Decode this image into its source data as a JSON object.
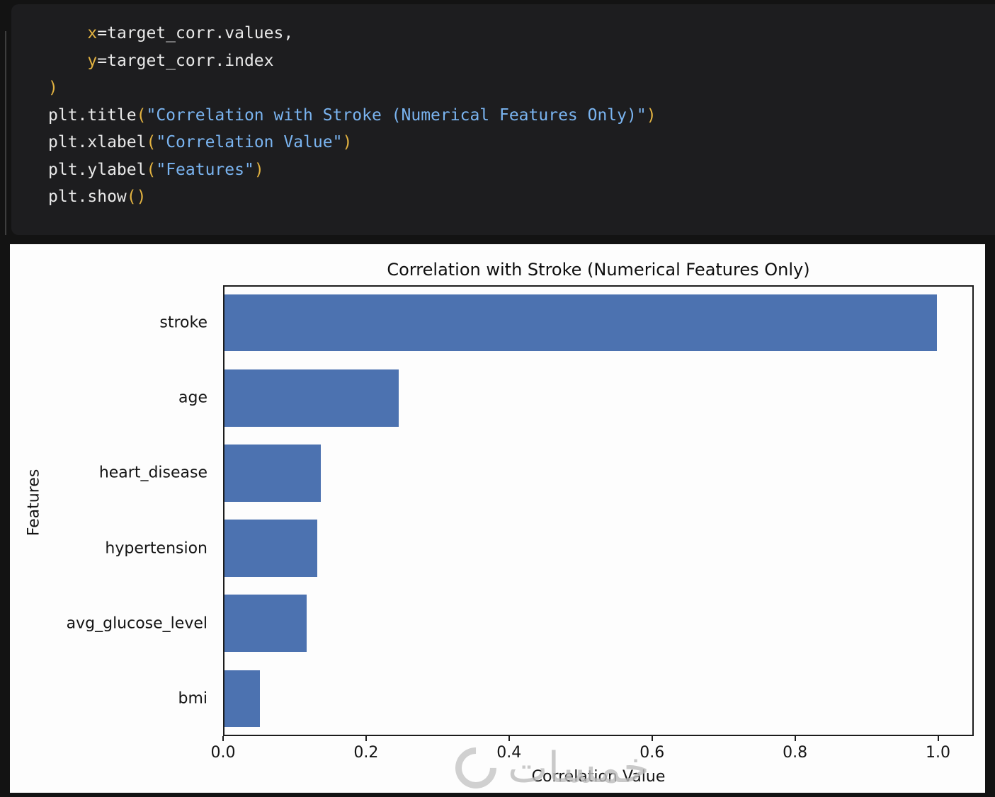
{
  "code_cell": {
    "colors": {
      "plain": "#e9e9e9",
      "accent": "#e3b341",
      "string": "#7ab4f0"
    },
    "lines": [
      {
        "tokens": [
          {
            "text": "    ",
            "type": "plain"
          },
          {
            "text": "x",
            "type": "accent"
          },
          {
            "text": "=target_corr.values,",
            "type": "plain"
          }
        ]
      },
      {
        "tokens": [
          {
            "text": "    ",
            "type": "plain"
          },
          {
            "text": "y",
            "type": "accent"
          },
          {
            "text": "=target_corr.index",
            "type": "plain"
          }
        ]
      },
      {
        "tokens": [
          {
            "text": ")",
            "type": "accent"
          }
        ]
      },
      {
        "tokens": [
          {
            "text": "plt.title",
            "type": "plain"
          },
          {
            "text": "(",
            "type": "accent"
          },
          {
            "text": "\"Correlation with Stroke (Numerical Features Only)\"",
            "type": "string"
          },
          {
            "text": ")",
            "type": "accent"
          }
        ]
      },
      {
        "tokens": [
          {
            "text": "plt.xlabel",
            "type": "plain"
          },
          {
            "text": "(",
            "type": "accent"
          },
          {
            "text": "\"Correlation Value\"",
            "type": "string"
          },
          {
            "text": ")",
            "type": "accent"
          }
        ]
      },
      {
        "tokens": [
          {
            "text": "plt.ylabel",
            "type": "plain"
          },
          {
            "text": "(",
            "type": "accent"
          },
          {
            "text": "\"Features\"",
            "type": "string"
          },
          {
            "text": ")",
            "type": "accent"
          }
        ]
      },
      {
        "tokens": [
          {
            "text": "plt.show",
            "type": "plain"
          },
          {
            "text": "()",
            "type": "accent"
          }
        ]
      }
    ]
  },
  "chart_data": {
    "type": "bar",
    "orientation": "horizontal",
    "title": "Correlation with Stroke (Numerical Features Only)",
    "xlabel": "Correlation Value",
    "ylabel": "Features",
    "categories": [
      "stroke",
      "age",
      "heart_disease",
      "hypertension",
      "avg_glucose_level",
      "bmi"
    ],
    "values": [
      1.0,
      0.245,
      0.135,
      0.13,
      0.115,
      0.05
    ],
    "xticks": [
      0.0,
      0.2,
      0.4,
      0.6,
      0.8,
      1.0
    ],
    "xlim": [
      0,
      1.05
    ],
    "bar_color": "#4c72b0",
    "grid": false,
    "legend": null
  },
  "watermark": {
    "text": "خمسات"
  }
}
